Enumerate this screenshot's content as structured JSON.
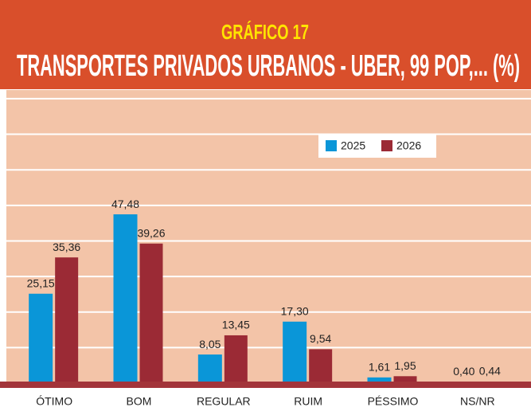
{
  "chart_data": {
    "type": "bar",
    "title": "GRÁFICO 17",
    "subtitle": "TRANSPORTES PRIVADOS URBANOS - UBER, 99 POP,... (%)",
    "categories": [
      "ÓTIMO",
      "BOM",
      "REGULAR",
      "RUIM",
      "PÉSSIMO",
      "NS/NR"
    ],
    "series": [
      {
        "name": "2025",
        "color": "#0a96d8",
        "values": [
          25.15,
          47.48,
          8.05,
          17.3,
          1.61,
          0.4
        ],
        "value_labels": [
          "25,15",
          "47,48",
          "8,05",
          "17,30",
          "1,61",
          "0,40"
        ]
      },
      {
        "name": "2026",
        "color": "#9b2a35",
        "values": [
          35.36,
          39.26,
          13.45,
          9.54,
          1.95,
          0.44
        ],
        "value_labels": [
          "35,36",
          "39,26",
          "13,45",
          "9,54",
          "1,95",
          "0,44"
        ]
      }
    ],
    "ylim": [
      0,
      82
    ],
    "yticks": [
      0,
      10,
      20,
      30,
      40,
      50,
      60,
      70,
      80
    ],
    "grid": true
  }
}
